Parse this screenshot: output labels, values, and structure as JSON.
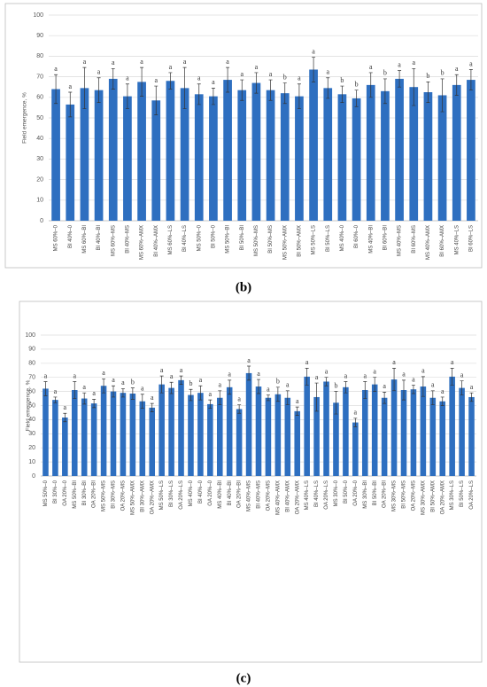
{
  "chart_data": [
    {
      "type": "bar",
      "panel_label": "(b)",
      "ylabel": "Field emergence, %",
      "color": "#2e6fc0",
      "ylim": [
        0,
        100
      ],
      "yticks": [
        0,
        10,
        20,
        30,
        40,
        50,
        60,
        70,
        80,
        90,
        100
      ],
      "grid": true,
      "categories": [
        "MS 60%–0",
        "BI 40%–0",
        "MS 60%–BI",
        "BI 40%–BI",
        "MS 60%–MS",
        "BI 40%–MS",
        "MS 60%–AMX",
        "BI 40%–AMX",
        "MS 60%–LS",
        "BI 40%–LS",
        "MS 50%–0",
        "BI 50%–0",
        "MS 50%–BI",
        "BI 50%–BI",
        "MS 50%–MS",
        "BI 50%–MS",
        "MS 50%–AMX",
        "BI 50%–AMX",
        "MS 50%–LS",
        "BI 50%–LS",
        "MS 40%–0",
        "BI 60%–0",
        "MS 40%–BI",
        "BI 60%–BI",
        "MS 40%–MS",
        "BI 60%–MS",
        "MS 40%–AMX",
        "BI 60%–AMX",
        "MS 40%–LS",
        "BI 60%–LS"
      ],
      "values": [
        64,
        56.5,
        64.5,
        63.5,
        69,
        60.5,
        67.5,
        58.5,
        68,
        64.5,
        61.5,
        60.5,
        68.5,
        63.5,
        67,
        63.5,
        62,
        60.5,
        73.5,
        64.5,
        61.5,
        59.5,
        66,
        63,
        69,
        65,
        62.5,
        61,
        66,
        68.5
      ],
      "errors": [
        7,
        6,
        10,
        6,
        5,
        6,
        7,
        7,
        4,
        10,
        5,
        4,
        6,
        5,
        5,
        5,
        5,
        6,
        6,
        5,
        4,
        4,
        6,
        6,
        4,
        9,
        5,
        8,
        5,
        5
      ],
      "letters": [
        "a",
        "a",
        "a",
        "a",
        "a",
        "a",
        "a",
        "a",
        "a",
        "a",
        "a",
        "a",
        "a",
        "a",
        "a",
        "a",
        "b",
        "a",
        "a",
        "a",
        "b",
        "b",
        "a",
        "b",
        "a",
        "a",
        "b",
        "b",
        "a",
        "a"
      ]
    },
    {
      "type": "bar",
      "panel_label": "(c)",
      "ylabel": "Field emergence, %",
      "color": "#2e6fc0",
      "ylim": [
        0,
        100
      ],
      "yticks": [
        0,
        10,
        20,
        30,
        40,
        50,
        60,
        70,
        80,
        90,
        100
      ],
      "grid": true,
      "categories": [
        "MS 50%–0",
        "BI 30%–0",
        "OA 20%–0",
        "MS 50%–BI",
        "BI 30%–BI",
        "OA 20%–BI",
        "MS 50%–MS",
        "BI 30%–MS",
        "OA 20%–MS",
        "MS 50%–AMX",
        "BI 30%–AMX",
        "OA 20%–AMX",
        "MS 50%–LS",
        "BI 30%–LS",
        "OA 20%–LS",
        "MS 40%–0",
        "BI 40%–0",
        "OA 20%–0",
        "MS 40%–BI",
        "BI 40%–BI",
        "OA 20%–BI",
        "MS 40%–MS",
        "BI 40%–MS",
        "OA 20%–MS",
        "MS 40%–AMX",
        "BI 40%–AMX",
        "OA 20%–AMX",
        "MS 40%–LS",
        "BI 40%–LS",
        "OA 20%–LS",
        "MS 30%–0",
        "BI 50%–0",
        "OA 20%–0",
        "MS 30%–BI",
        "BI 50%–BI",
        "OA 20%–BI",
        "MS 30%–MS",
        "BI 50%–MS",
        "OA 20%–MS",
        "MS 30%–AMX",
        "BI 50%–AMX",
        "OA 20%–AMX",
        "MS 30%–LS",
        "BI 50%–LS",
        "OA 20%–LS"
      ],
      "values": [
        62,
        54,
        41.5,
        61,
        55,
        51.5,
        64,
        60,
        59,
        58.5,
        53,
        48.5,
        65,
        62.5,
        68,
        57.5,
        59,
        51,
        55.5,
        63,
        47.5,
        73,
        63.5,
        55.5,
        58,
        55.5,
        46,
        70.5,
        56,
        67,
        52,
        63,
        38,
        61,
        65,
        55.5,
        68.5,
        61,
        61.5,
        63.5,
        55.5,
        53,
        70.5,
        62.5,
        56
      ],
      "errors": [
        5,
        2,
        3,
        6,
        4,
        3,
        5,
        4,
        3,
        4,
        5,
        3,
        6,
        4,
        3,
        4,
        5,
        3,
        5,
        5,
        3,
        5,
        5,
        2,
        5,
        5,
        3,
        6,
        10,
        3,
        8,
        4,
        3,
        6,
        5,
        4,
        8,
        7,
        3,
        7,
        5,
        3,
        6,
        5,
        3
      ],
      "letters": [
        "a",
        "a",
        "a",
        "a",
        "a",
        "a",
        "a",
        "a",
        "a",
        "b",
        "a",
        "a",
        "a",
        "a",
        "a",
        "b",
        "a",
        "a",
        "a",
        "a",
        "a",
        "a",
        "a",
        "a",
        "b",
        "a",
        "a",
        "a",
        "a",
        "a",
        "b",
        "a",
        "a",
        "a",
        "a",
        "a",
        "a",
        "a",
        "a",
        "a",
        "a",
        "a",
        "a",
        "a",
        "a"
      ]
    }
  ]
}
